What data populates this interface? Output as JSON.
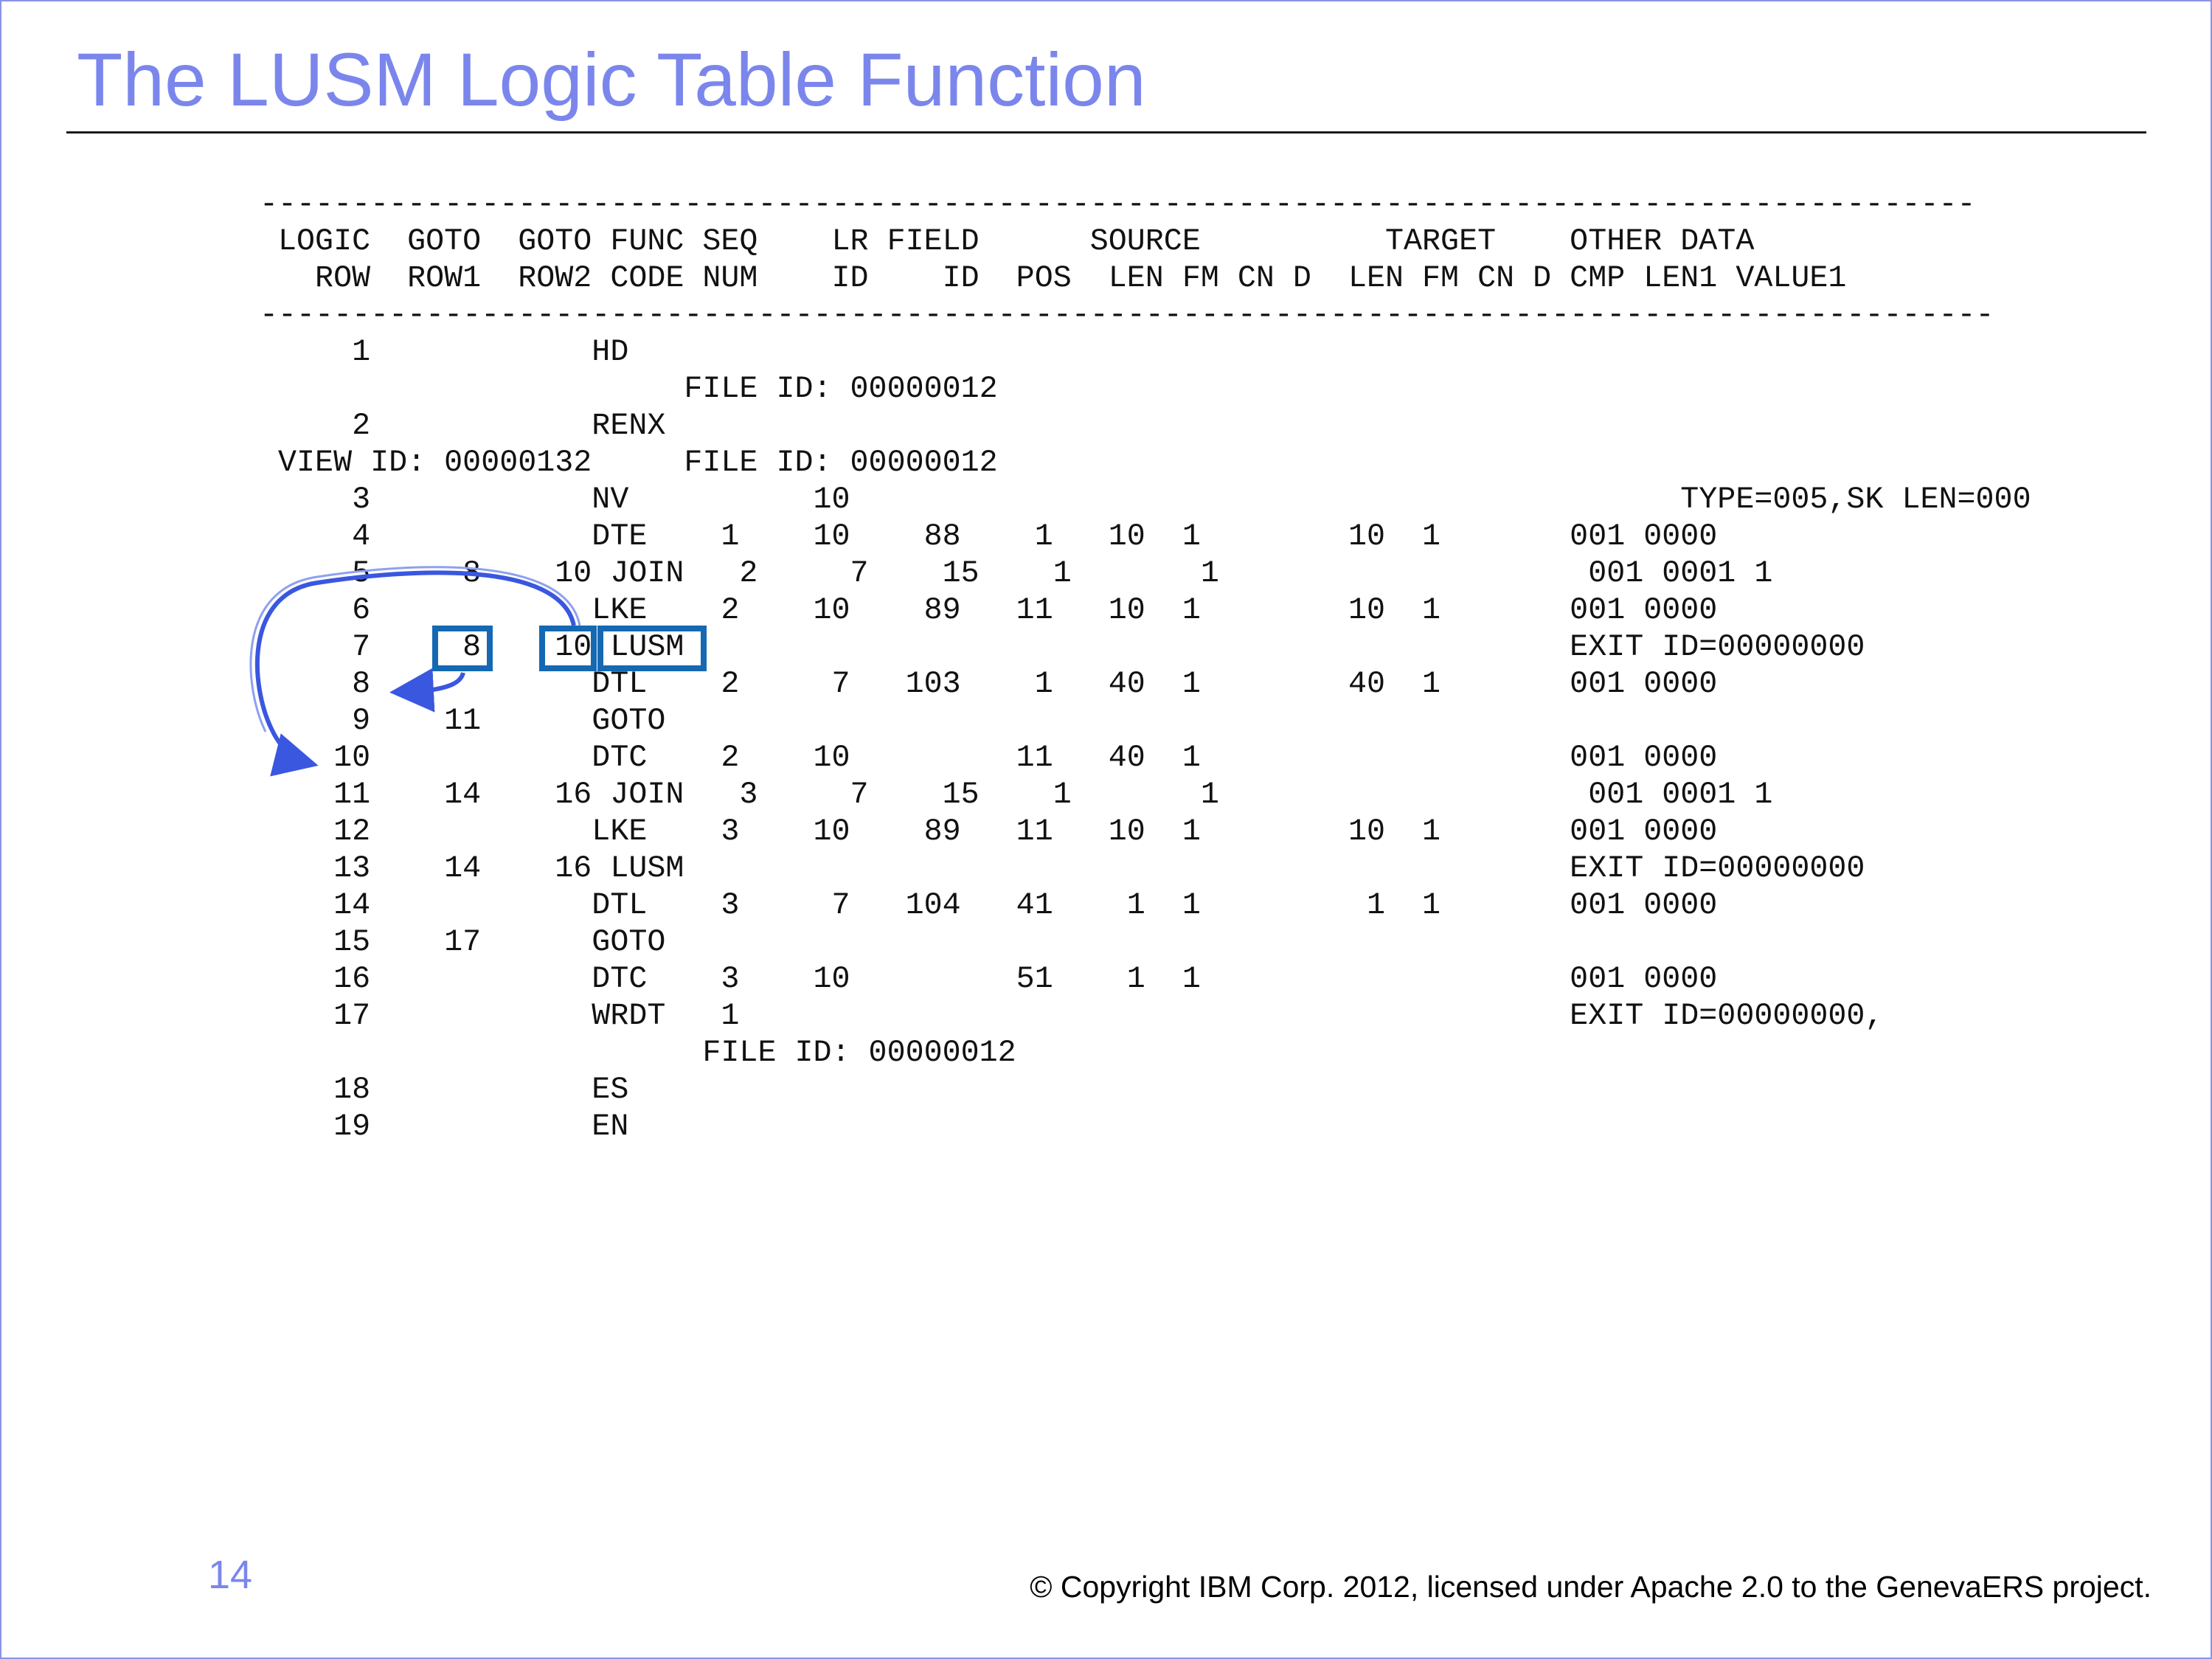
{
  "slide": {
    "title": "The LUSM Logic Table Function",
    "page_number": "14",
    "copyright": "© Copyright IBM Corp. 2012, licensed under Apache 2.0 to the GenevaERS project."
  },
  "listing": {
    "separator_top": "---------------------------------------------------------------------------------------------",
    "header_line_1": " LOGIC  GOTO  GOTO FUNC SEQ    LR FIELD      SOURCE          TARGET    OTHER DATA",
    "header_line_2": "   ROW  ROW1  ROW2 CODE NUM    ID    ID  POS  LEN FM CN D  LEN FM CN D CMP LEN1 VALUE1",
    "separator_bottom": "----------------------------------------------------------------------------------------------",
    "rows": [
      "     1            HD",
      "                       FILE ID: 00000012",
      "     2            RENX",
      " VIEW ID: 00000132     FILE ID: 00000012",
      "     3            NV          10                                             TYPE=005,SK LEN=000",
      "     4            DTE    1    10    88    1   10  1        10  1       001 0000",
      "     5     8    10 JOIN   2     7    15    1       1                    001 0001 1",
      "     6            LKE    2    10    89   11   10  1        10  1       001 0000",
      "     7     8    10 LUSM                                                EXIT ID=00000000",
      "     8            DTL    2     7   103    1   40  1        40  1       001 0000",
      "     9    11      GOTO",
      "    10            DTC    2    10         11   40  1                    001 0000",
      "    11    14    16 JOIN   3     7    15    1       1                    001 0001 1",
      "    12            LKE    3    10    89   11   10  1        10  1       001 0000",
      "    13    14    16 LUSM                                                EXIT ID=00000000",
      "    14            DTL    3     7   104   41    1  1         1  1       001 0000",
      "    15    17      GOTO",
      "    16            DTC    3    10         51    1  1                    001 0000",
      "    17            WRDT   1                                             EXIT ID=00000000,",
      "                        FILE ID: 00000012",
      "    18            ES",
      "    19            EN"
    ]
  },
  "highlight": {
    "color": "#1569b3",
    "arrow_color": "#3a57e0",
    "boxed_items": [
      "goto-row1-8",
      "goto-row2-10",
      "func-code-lusm"
    ]
  }
}
